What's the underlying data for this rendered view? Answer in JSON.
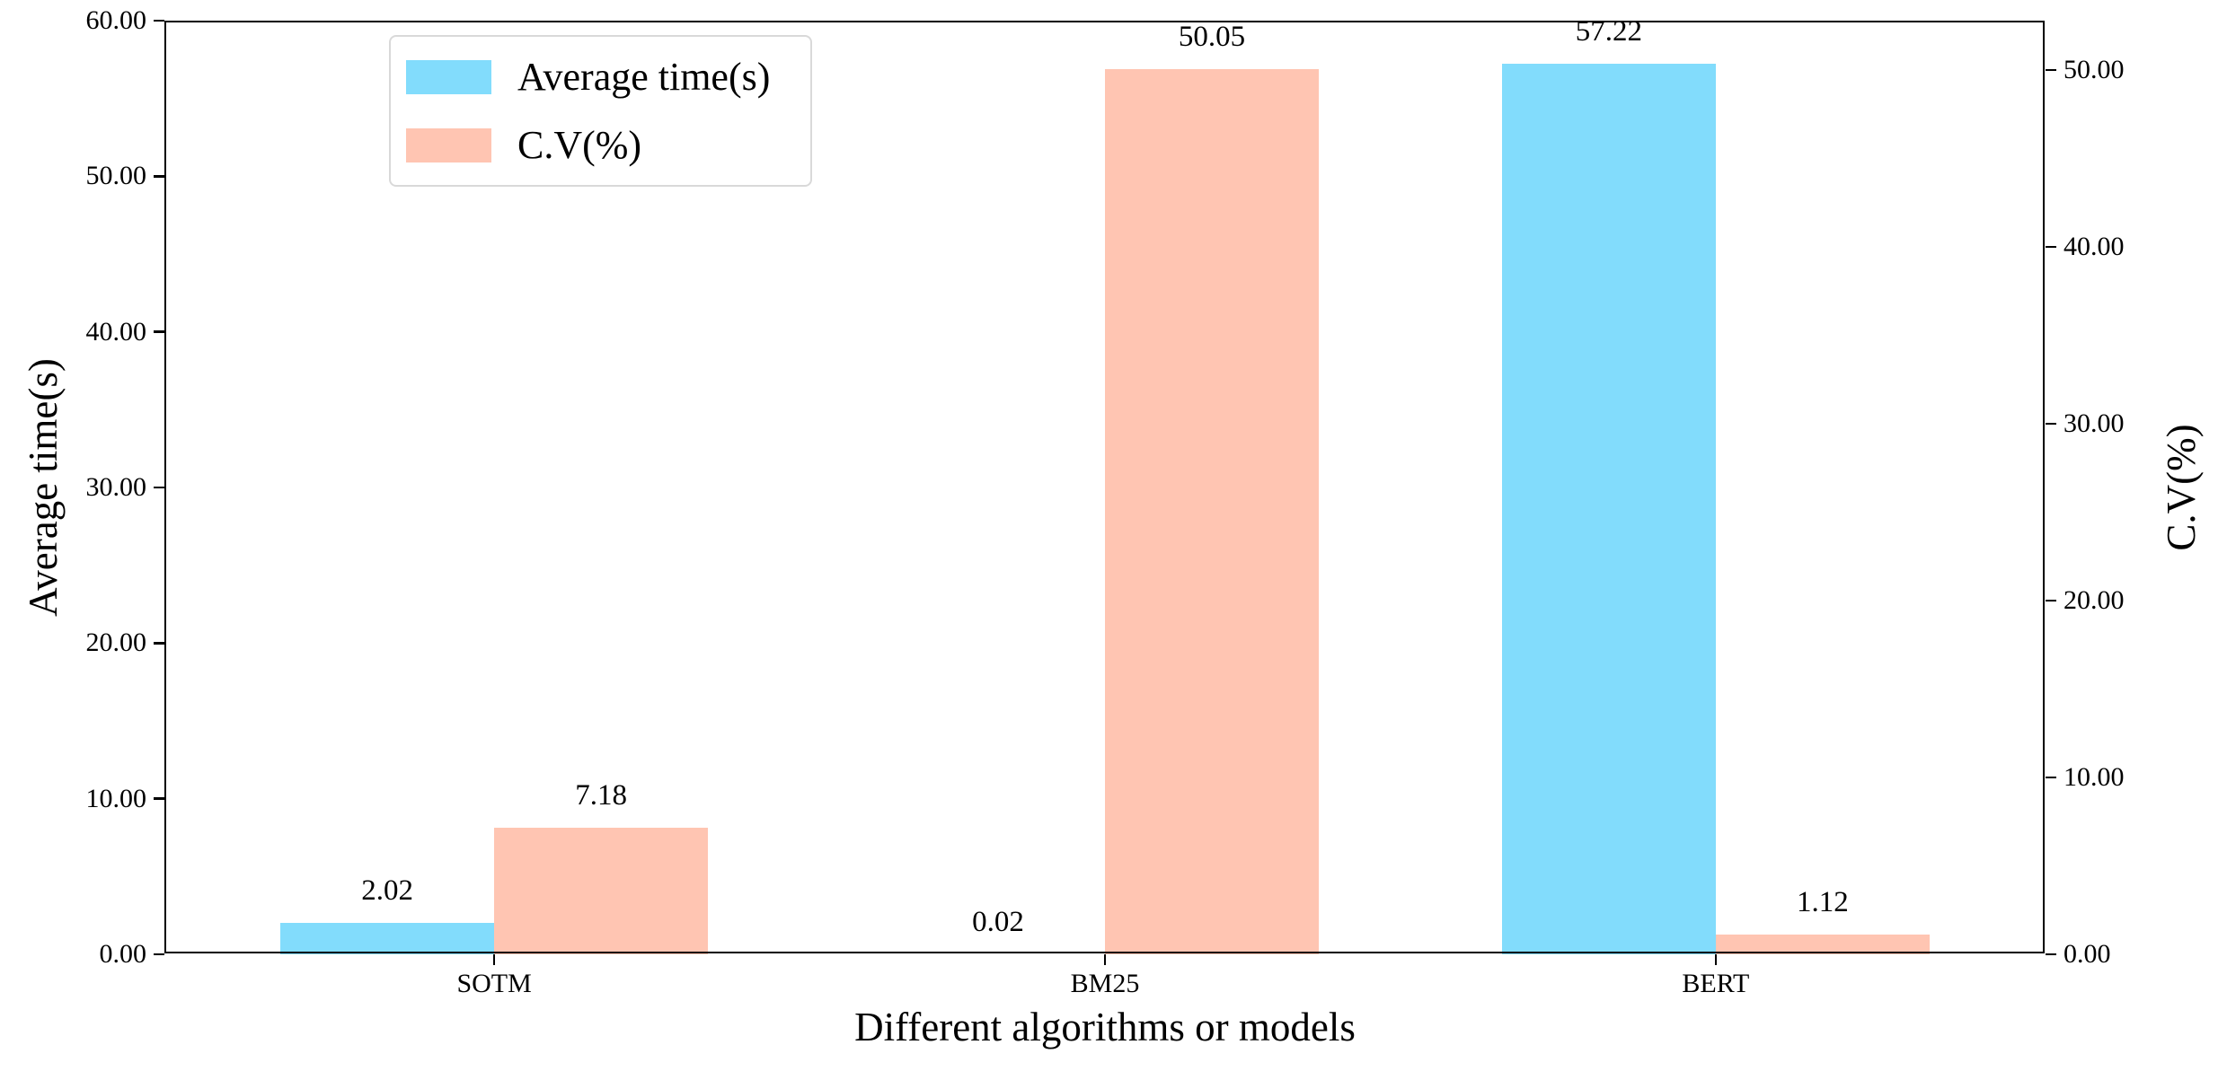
{
  "figure": {
    "background": "#ffffff",
    "spine_color": "#000000",
    "legend_border_color": "#d9d9d9"
  },
  "chart_data": {
    "type": "bar",
    "categories": [
      "SOTM",
      "BM25",
      "BERT"
    ],
    "series": [
      {
        "name": "Average time(s)",
        "axis": "left",
        "color": "#82dcfc",
        "values": [
          2.02,
          0.02,
          57.22
        ]
      },
      {
        "name": "C.V(%)",
        "axis": "right",
        "color": "#ffc5b2",
        "values": [
          7.18,
          50.05,
          1.12
        ]
      }
    ],
    "bar_labels": [
      [
        "2.02",
        "0.02",
        "57.22"
      ],
      [
        "7.18",
        "50.05",
        "1.12"
      ]
    ],
    "title": "",
    "xlabel": "Different algorithms or models",
    "ylabel_left": "Average time(s)",
    "ylabel_right": "C.V(%)",
    "left_axis": {
      "min": 0,
      "max": 60,
      "ticks": [
        "0.00",
        "10.00",
        "20.00",
        "30.00",
        "40.00",
        "50.00",
        "60.00"
      ]
    },
    "right_axis": {
      "min": 0,
      "max": 52.8,
      "ticks": [
        "0.00",
        "10.00",
        "20.00",
        "30.00",
        "40.00",
        "50.00"
      ]
    },
    "legend": {
      "position": "upper left",
      "entries": [
        {
          "label": "Average time(s)",
          "color": "#82dcfc"
        },
        {
          "label": "C.V(%)",
          "color": "#ffc5b2"
        }
      ]
    },
    "grid": false,
    "bar_width_fraction": 0.35
  }
}
